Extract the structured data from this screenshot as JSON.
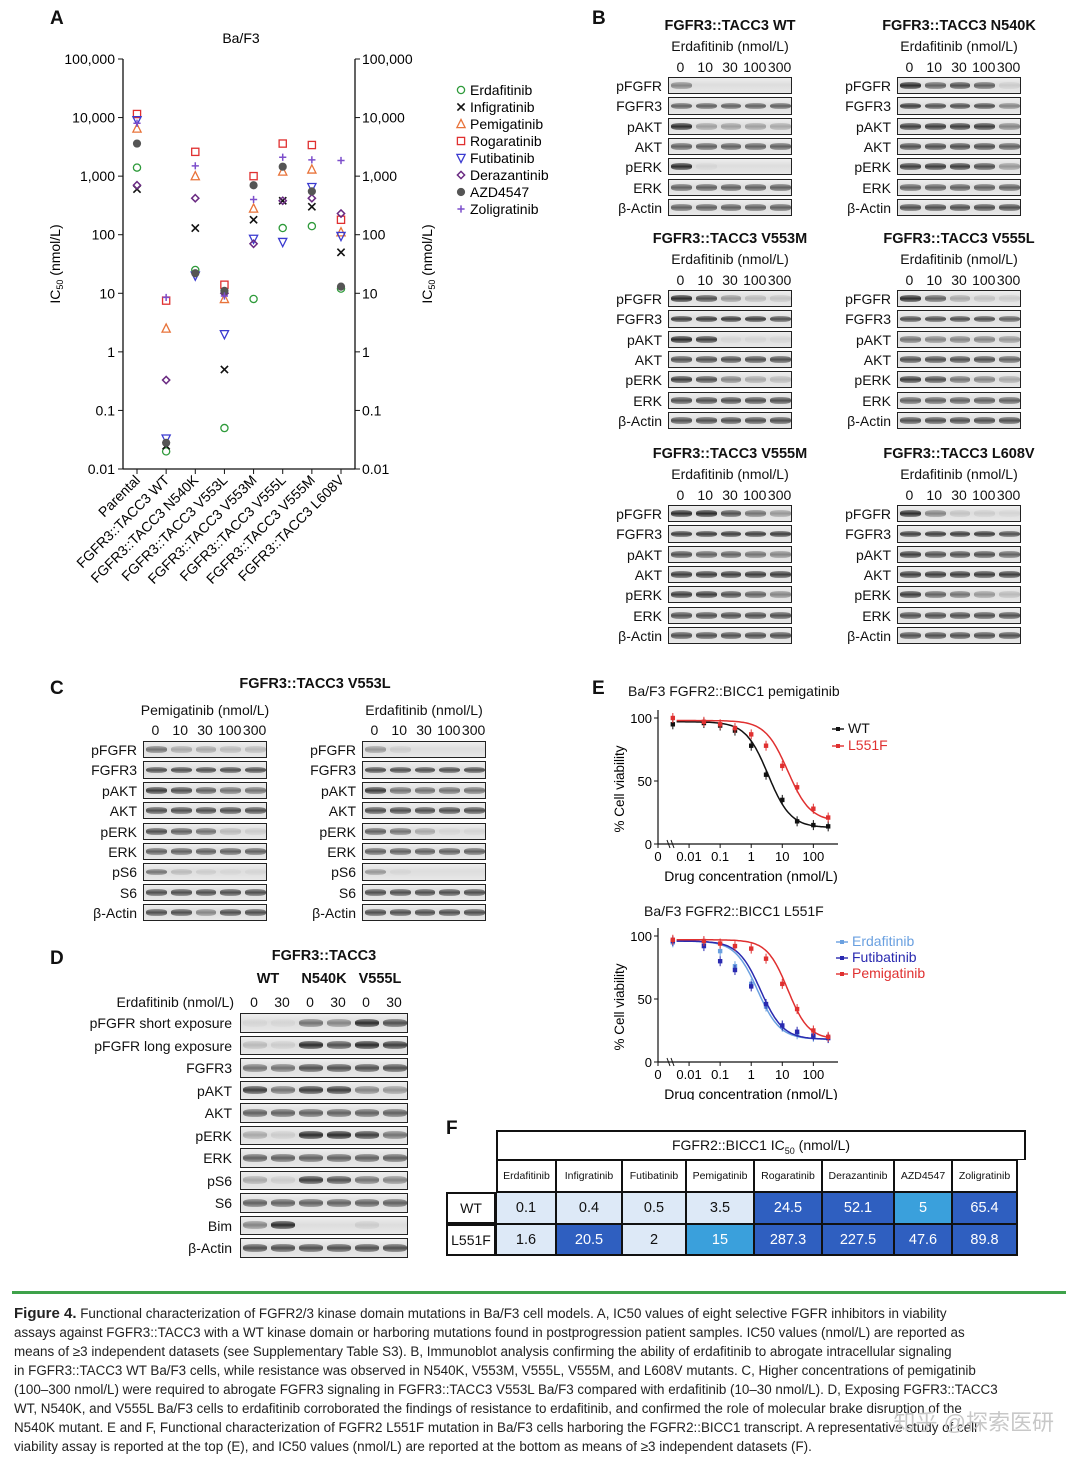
{
  "panel_letters": {
    "a": "A",
    "b": "B",
    "c": "C",
    "d": "D",
    "e": "E",
    "f": "F"
  },
  "chart_data": [
    {
      "id": "A",
      "type": "scatter",
      "title": "Ba/F3",
      "ylabel": "IC50 (nmol/L)",
      "y_scale": "log",
      "ylim": [
        0.01,
        100000
      ],
      "y_ticks": [
        "100,000",
        "10,000",
        "1,000",
        "100",
        "10",
        "1",
        "0.1",
        "0.01"
      ],
      "y_tick_values": [
        100000,
        10000,
        1000,
        100,
        10,
        1,
        0.1,
        0.01
      ],
      "categories": [
        "Parental",
        "FGFR3::TACC3 WT",
        "FGFR3::TACC3 N540K",
        "FGFR3::TACC3 V553L",
        "FGFR3::TACC3 V553M",
        "FGFR3::TACC3 V555L",
        "FGFR3::TACC3 V555M",
        "FGFR3::TACC3 L608V"
      ],
      "legend_position": "right",
      "series": [
        {
          "name": "Erdafitinib",
          "marker": "circle",
          "color": "#2e9a3a",
          "values": [
            1400,
            0.02,
            25,
            0.05,
            8,
            130,
            140,
            12
          ]
        },
        {
          "name": "Infigratinib",
          "marker": "x",
          "color": "#111111",
          "values": [
            600,
            0.025,
            130,
            0.5,
            180,
            380,
            300,
            50
          ]
        },
        {
          "name": "Pemigatinib",
          "marker": "triangle",
          "color": "#e8733a",
          "values": [
            6500,
            2.5,
            1000,
            8,
            280,
            1200,
            1300,
            110
          ]
        },
        {
          "name": "Rogaratinib",
          "marker": "square",
          "color": "#e03030",
          "values": [
            11500,
            7.5,
            2600,
            14,
            1000,
            3600,
            3400,
            180
          ]
        },
        {
          "name": "Futibatinib",
          "marker": "tri-down",
          "color": "#3a3ad0",
          "values": [
            9000,
            0.033,
            20,
            2,
            85,
            75,
            650,
            95
          ]
        },
        {
          "name": "Derazantinib",
          "marker": "diamond",
          "color": "#6a2a82",
          "values": [
            700,
            0.33,
            420,
            10,
            70,
            380,
            420,
            230
          ]
        },
        {
          "name": "AZD4547",
          "marker": "dot",
          "color": "#555555",
          "values": [
            3600,
            0.028,
            22,
            11,
            700,
            1450,
            550,
            13
          ]
        },
        {
          "name": "Zoligratinib",
          "marker": "plus",
          "color": "#7c4ecb",
          "values": [
            8000,
            8.5,
            1500,
            9,
            400,
            2100,
            1900,
            1850
          ]
        }
      ]
    },
    {
      "id": "E-top",
      "type": "line",
      "title": "Ba/F3 FGFR2::BICC1 pemigatinib",
      "xlabel": "Drug concentration (nmol/L)",
      "ylabel": "% Cell viability",
      "x_ticks": [
        "0",
        "0.01",
        "0.1",
        "1",
        "10",
        "100"
      ],
      "y_ticks": [
        "0",
        "50",
        "100"
      ],
      "ylim": [
        0,
        100
      ],
      "series": [
        {
          "name": "WT",
          "color": "#111111",
          "top": 97,
          "bottom": 13,
          "ic50": 3.5,
          "hill": 1.2,
          "points_x": [
            0.003,
            0.03,
            0.1,
            0.3,
            1,
            3,
            10,
            30,
            100,
            300
          ],
          "points_y": [
            95,
            96,
            94,
            90,
            78,
            55,
            35,
            18,
            15,
            14
          ]
        },
        {
          "name": "L551F",
          "color": "#e03030",
          "top": 98,
          "bottom": 18,
          "ic50": 15,
          "hill": 1.2,
          "points_x": [
            0.003,
            0.03,
            0.1,
            0.3,
            1,
            3,
            10,
            30,
            100,
            300
          ],
          "points_y": [
            100,
            97,
            95,
            92,
            87,
            78,
            62,
            45,
            28,
            21
          ]
        }
      ]
    },
    {
      "id": "E-bottom",
      "type": "line",
      "title": "Ba/F3 FGFR2::BICC1 L551F",
      "xlabel": "Drug concentration (nmol/L)",
      "ylabel": "% Cell viability",
      "x_ticks": [
        "0",
        "0.01",
        "0.1",
        "1",
        "10",
        "100"
      ],
      "y_ticks": [
        "0",
        "50",
        "100"
      ],
      "ylim": [
        0,
        100
      ],
      "series": [
        {
          "name": "Erdafitinib",
          "color": "#6aa0e0",
          "top": 96,
          "bottom": 18,
          "ic50": 1.6,
          "hill": 1.2,
          "points_x": [
            0.003,
            0.03,
            0.1,
            0.3,
            1,
            3,
            10,
            30,
            100,
            300
          ],
          "points_y": [
            95,
            95,
            88,
            76,
            62,
            44,
            28,
            22,
            20,
            19
          ]
        },
        {
          "name": "Futibatinib",
          "color": "#2a2ab0",
          "top": 96,
          "bottom": 18,
          "ic50": 2.0,
          "hill": 1.2,
          "points_x": [
            0.003,
            0.03,
            0.1,
            0.3,
            1,
            3,
            10,
            30,
            100,
            300
          ],
          "points_y": [
            96,
            92,
            80,
            73,
            60,
            46,
            29,
            24,
            21,
            19
          ]
        },
        {
          "name": "Pemigatinib",
          "color": "#e03030",
          "top": 97,
          "bottom": 18,
          "ic50": 15,
          "hill": 1.3,
          "points_x": [
            0.003,
            0.03,
            0.1,
            0.3,
            1,
            3,
            10,
            30,
            100,
            300
          ],
          "points_y": [
            97,
            96,
            94,
            92,
            90,
            82,
            62,
            42,
            25,
            20
          ]
        }
      ]
    }
  ],
  "panel_b": {
    "dose_header": "Erdafitinib (nmol/L)",
    "doses": [
      "0",
      "10",
      "30",
      "100",
      "300"
    ],
    "rows": [
      "pFGFR",
      "FGFR3",
      "pAKT",
      "AKT",
      "pERK",
      "ERK",
      "β-Actin"
    ],
    "blots": [
      {
        "title": "FGFR3::TACC3 WT",
        "levels": [
          [
            0.5,
            0,
            0,
            0,
            0
          ],
          [
            0.7,
            0.7,
            0.7,
            0.7,
            0.7
          ],
          [
            1,
            0.35,
            0.35,
            0.35,
            0.3
          ],
          [
            0.7,
            0.7,
            0.7,
            0.7,
            0.7
          ],
          [
            1,
            0.05,
            0,
            0,
            0
          ],
          [
            0.7,
            0.7,
            0.7,
            0.7,
            0.7
          ],
          [
            0.7,
            0.7,
            0.7,
            0.7,
            0.7
          ]
        ]
      },
      {
        "title": "FGFR3::TACC3 N540K",
        "levels": [
          [
            1,
            0.7,
            0.8,
            0.7,
            0.1
          ],
          [
            0.9,
            0.8,
            0.8,
            0.8,
            0.5
          ],
          [
            0.9,
            0.9,
            0.9,
            0.9,
            0.5
          ],
          [
            0.8,
            0.8,
            0.8,
            0.8,
            0.7
          ],
          [
            0.9,
            0.9,
            0.9,
            0.8,
            0.4
          ],
          [
            0.7,
            0.7,
            0.7,
            0.7,
            0.7
          ],
          [
            0.8,
            0.8,
            0.8,
            0.8,
            0.8
          ]
        ]
      },
      {
        "title": "FGFR3::TACC3 V553M",
        "levels": [
          [
            1,
            0.8,
            0.4,
            0.2,
            0.15
          ],
          [
            0.9,
            0.9,
            0.9,
            0.9,
            0.8
          ],
          [
            1,
            0.9,
            0.05,
            0.05,
            0.05
          ],
          [
            0.8,
            0.8,
            0.8,
            0.8,
            0.8
          ],
          [
            0.9,
            0.8,
            0.5,
            0.3,
            0.2
          ],
          [
            0.8,
            0.8,
            0.8,
            0.8,
            0.8
          ],
          [
            0.8,
            0.8,
            0.8,
            0.8,
            0.8
          ]
        ]
      },
      {
        "title": "FGFR3::TACC3 V555L",
        "levels": [
          [
            1,
            0.7,
            0.3,
            0.15,
            0.1
          ],
          [
            0.8,
            0.8,
            0.8,
            0.8,
            0.7
          ],
          [
            0.6,
            0.5,
            0.5,
            0.5,
            0.4
          ],
          [
            0.8,
            0.8,
            0.8,
            0.8,
            0.7
          ],
          [
            0.9,
            0.8,
            0.6,
            0.5,
            0.3
          ],
          [
            0.7,
            0.7,
            0.7,
            0.7,
            0.7
          ],
          [
            0.8,
            0.8,
            0.8,
            0.8,
            0.8
          ]
        ]
      },
      {
        "title": "FGFR3::TACC3 V555M",
        "levels": [
          [
            1,
            1,
            0.8,
            0.6,
            0.4
          ],
          [
            0.9,
            0.9,
            0.9,
            0.9,
            0.9
          ],
          [
            0.8,
            0.7,
            0.7,
            0.6,
            0.5
          ],
          [
            0.9,
            0.9,
            0.9,
            0.9,
            0.9
          ],
          [
            0.9,
            0.9,
            0.8,
            0.7,
            0.5
          ],
          [
            0.8,
            0.8,
            0.8,
            0.8,
            0.8
          ],
          [
            0.8,
            0.8,
            0.8,
            0.8,
            0.8
          ]
        ]
      },
      {
        "title": "FGFR3::TACC3 L608V",
        "levels": [
          [
            1,
            0.5,
            0.15,
            0.1,
            0.05
          ],
          [
            0.9,
            0.9,
            0.9,
            0.9,
            0.8
          ],
          [
            0.9,
            0.8,
            0.8,
            0.8,
            0.7
          ],
          [
            0.9,
            0.9,
            0.9,
            0.9,
            0.9
          ],
          [
            0.9,
            0.7,
            0.6,
            0.4,
            0.2
          ],
          [
            0.8,
            0.8,
            0.8,
            0.8,
            0.8
          ],
          [
            0.8,
            0.8,
            0.8,
            0.8,
            0.8
          ]
        ]
      }
    ]
  },
  "panel_c": {
    "title": "FGFR3::TACC3 V553L",
    "doses": [
      "0",
      "10",
      "30",
      "100",
      "300"
    ],
    "rows": [
      "pFGFR",
      "FGFR3",
      "pAKT",
      "AKT",
      "pERK",
      "ERK",
      "pS6",
      "S6",
      "β-Actin"
    ],
    "blots": [
      {
        "header": "Pemigatinib (nmol/L)",
        "levels": [
          [
            0.6,
            0.3,
            0.3,
            0.2,
            0.2
          ],
          [
            0.8,
            0.8,
            0.8,
            0.8,
            0.8
          ],
          [
            0.9,
            0.8,
            0.7,
            0.6,
            0.6
          ],
          [
            0.8,
            0.8,
            0.8,
            0.8,
            0.8
          ],
          [
            0.8,
            0.7,
            0.6,
            0.2,
            0.1
          ],
          [
            0.7,
            0.7,
            0.7,
            0.7,
            0.7
          ],
          [
            0.6,
            0.2,
            0.1,
            0.05,
            0.05
          ],
          [
            0.8,
            0.8,
            0.8,
            0.8,
            0.8
          ],
          [
            0.8,
            0.8,
            0.5,
            0.8,
            0.8
          ]
        ]
      },
      {
        "header": "Erdafitinib (nmol/L)",
        "levels": [
          [
            0.4,
            0.1,
            0,
            0,
            0
          ],
          [
            0.8,
            0.8,
            0.8,
            0.8,
            0.8
          ],
          [
            0.9,
            0.6,
            0.6,
            0.6,
            0.6
          ],
          [
            0.8,
            0.8,
            0.8,
            0.8,
            0.8
          ],
          [
            0.7,
            0.6,
            0.3,
            0.05,
            0.05
          ],
          [
            0.7,
            0.7,
            0.7,
            0.7,
            0.7
          ],
          [
            0.4,
            0.05,
            0,
            0,
            0
          ],
          [
            0.8,
            0.8,
            0.8,
            0.8,
            0.8
          ],
          [
            0.8,
            0.8,
            0.8,
            0.8,
            0.8
          ]
        ]
      }
    ]
  },
  "panel_d": {
    "title": "FGFR3::TACC3",
    "groups": [
      "WT",
      "N540K",
      "V555L"
    ],
    "dose_label": "Erdafitinib (nmol/L)",
    "doses": [
      "0",
      "30",
      "0",
      "30",
      "0",
      "30"
    ],
    "rows": [
      "pFGFR short exposure",
      "pFGFR long exposure",
      "FGFR3",
      "pAKT",
      "AKT",
      "pERK",
      "ERK",
      "pS6",
      "S6",
      "Bim",
      "β-Actin"
    ],
    "levels": [
      [
        0.05,
        0.05,
        0.6,
        0.5,
        1,
        0.8
      ],
      [
        0.2,
        0.1,
        1,
        0.8,
        1,
        0.9
      ],
      [
        0.6,
        0.6,
        0.8,
        0.8,
        0.8,
        0.8
      ],
      [
        0.9,
        0.6,
        0.9,
        0.9,
        0.5,
        0.4
      ],
      [
        0.7,
        0.7,
        0.7,
        0.7,
        0.7,
        0.7
      ],
      [
        0.3,
        0.1,
        1,
        1,
        0.9,
        0.6
      ],
      [
        0.7,
        0.7,
        0.7,
        0.7,
        0.7,
        0.7
      ],
      [
        0.3,
        0.1,
        0.9,
        0.8,
        0.6,
        0.5
      ],
      [
        0.7,
        0.7,
        0.7,
        0.7,
        0.7,
        0.7
      ],
      [
        0.5,
        1,
        0,
        0,
        0.1,
        0
      ],
      [
        0.8,
        0.8,
        0.8,
        0.8,
        0.8,
        0.8
      ]
    ]
  },
  "panel_f": {
    "header": "FGFR2::BICC1 IC50 (nmol/L)",
    "header_main": "FGFR2::BICC1 IC",
    "header_sub": "50",
    "header_unit": " (nmol/L)",
    "columns": [
      "Erdafitinib",
      "Infigratinib",
      "Futibatinib",
      "Pemigatinib",
      "Rogaratinib",
      "Derazantinib",
      "AZD4547",
      "Zoligratinib"
    ],
    "rows": [
      {
        "label": "WT",
        "values": [
          "0.1",
          "0.4",
          "0.5",
          "3.5",
          "24.5",
          "52.1",
          "5",
          "65.4"
        ],
        "colors": [
          "#dde9f7",
          "#dde9f7",
          "#dde9f7",
          "#dde9f7",
          "#2f5fc0",
          "#2f5fc0",
          "#3aa0dc",
          "#2f5fc0"
        ]
      },
      {
        "label": "L551F",
        "values": [
          "1.6",
          "20.5",
          "2",
          "15",
          "287.3",
          "227.5",
          "47.6",
          "89.8"
        ],
        "colors": [
          "#dde9f7",
          "#2f5fc0",
          "#dde9f7",
          "#3aa0dc",
          "#2f5fc0",
          "#2f5fc0",
          "#2f5fc0",
          "#2f5fc0"
        ]
      }
    ]
  },
  "caption": {
    "figure_label": "Figure 4.",
    "line1": "Functional characterization of FGFR2/3 kinase domain mutations in Ba/F3 cell models. A, IC50 values of eight selective FGFR inhibitors in viability",
    "line2": "assays against FGFR3::TACC3 with a WT kinase domain or harboring mutations found in postprogression patient samples. IC50 values (nmol/L) are reported as",
    "line3": "means of ≥3 independent datasets (see Supplementary Table S3). B, Immunoblot analysis confirming the ability of erdafitinib to abrogate intracellular signaling",
    "line4": "in FGFR3::TACC3 WT Ba/F3 cells, while resistance was observed in N540K, V553M, V555L, V555M, and L608V mutants. C, Higher concentrations of pemigatinib",
    "line5": "(100–300 nmol/L) were required to abrogate FGFR3 signaling in FGFR3::TACC3 V553L Ba/F3 compared with erdafitinib (10–30 nmol/L). D, Exposing FGFR3::TACC3",
    "line6": "WT, N540K, and V555L Ba/F3 cells to erdafitinib corroborated the findings of resistance to erdafitinib, and confirmed the role of molecular brake disruption of the",
    "line7": "N540K mutant. E and F, Functional characterization of FGFR2 L551F mutation in Ba/F3 cells harboring the FGFR2::BICC1 transcript. A representative study of cell",
    "line8": "viability assay is reported at the top (E), and IC50 values (nmol/L) are reported at the bottom as means of ≥3 independent datasets (F)."
  },
  "watermark": "知乎 @探索医研"
}
